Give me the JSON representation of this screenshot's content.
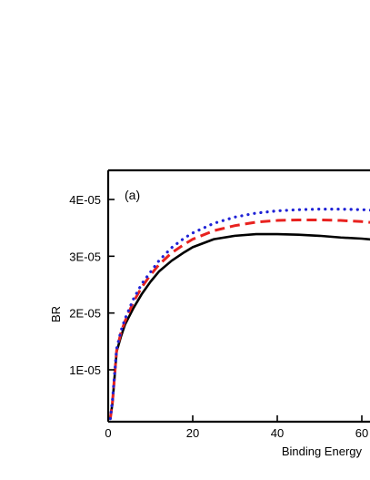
{
  "chart_data": {
    "type": "line",
    "panel_label": "(a)",
    "xlabel": "Binding Energy",
    "ylabel": "BR",
    "xlim": [
      0,
      63
    ],
    "ylim": [
      1e-06,
      4.5e-05
    ],
    "x_ticks": [
      {
        "value": 0,
        "label": "0"
      },
      {
        "value": 20,
        "label": "20"
      },
      {
        "value": 40,
        "label": "40"
      },
      {
        "value": 60,
        "label": "60"
      }
    ],
    "y_ticks": [
      {
        "value": 1e-05,
        "label": "1E-05"
      },
      {
        "value": 2e-05,
        "label": "2E-05"
      },
      {
        "value": 3e-05,
        "label": "3E-05"
      },
      {
        "value": 4e-05,
        "label": "4E-05"
      }
    ],
    "series": [
      {
        "color": "#000000",
        "style": "solid",
        "x": [
          0.5,
          1,
          2,
          3,
          4,
          6,
          8,
          10,
          12,
          15,
          18,
          20,
          25,
          30,
          35,
          40,
          45,
          50,
          55,
          60,
          63
        ],
        "y": [
          1.5e-06,
          4e-06,
          1.32e-05,
          1.58e-05,
          1.8e-05,
          2.09e-05,
          2.34e-05,
          2.55e-05,
          2.73e-05,
          2.92e-05,
          3.07e-05,
          3.16e-05,
          3.3e-05,
          3.36e-05,
          3.39e-05,
          3.39e-05,
          3.38e-05,
          3.36e-05,
          3.33e-05,
          3.31e-05,
          3.29e-05
        ]
      },
      {
        "color": "#e8221f",
        "style": "dashed",
        "x": [
          0.5,
          1,
          2,
          3,
          4,
          6,
          8,
          10,
          12,
          15,
          18,
          20,
          25,
          30,
          35,
          40,
          45,
          50,
          55,
          60,
          63
        ],
        "y": [
          1.3e-06,
          4.2e-06,
          1.34e-05,
          1.65e-05,
          1.86e-05,
          2.2e-05,
          2.46e-05,
          2.67e-05,
          2.85e-05,
          3.06e-05,
          3.21e-05,
          3.3e-05,
          3.45e-05,
          3.54e-05,
          3.6e-05,
          3.63e-05,
          3.64e-05,
          3.64e-05,
          3.63e-05,
          3.61e-05,
          3.59e-05
        ]
      },
      {
        "color": "#1f22d6",
        "style": "dotted",
        "x": [
          0.5,
          1,
          2,
          3,
          4,
          6,
          8,
          10,
          12,
          15,
          18,
          20,
          25,
          30,
          35,
          40,
          45,
          50,
          55,
          60,
          63
        ],
        "y": [
          1.4e-06,
          4.5e-06,
          1.37e-05,
          1.68e-05,
          1.9e-05,
          2.25e-05,
          2.52e-05,
          2.72e-05,
          2.92e-05,
          3.15e-05,
          3.32e-05,
          3.41e-05,
          3.58e-05,
          3.69e-05,
          3.76e-05,
          3.8e-05,
          3.82e-05,
          3.83e-05,
          3.83e-05,
          3.82e-05,
          3.81e-05
        ]
      }
    ]
  }
}
